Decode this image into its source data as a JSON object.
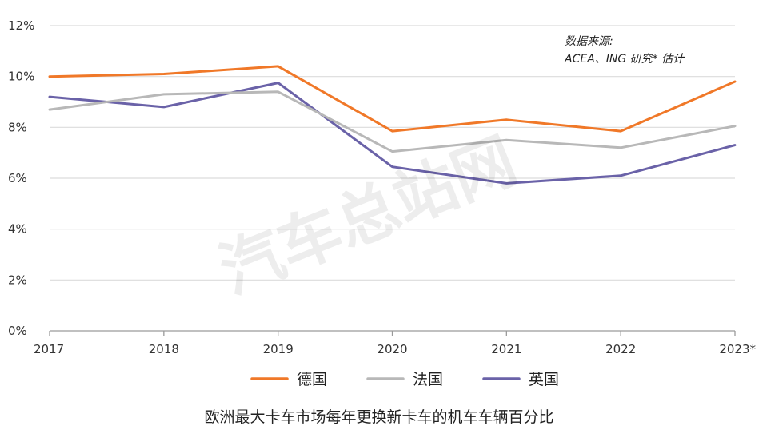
{
  "chart_data": {
    "type": "line",
    "x": [
      "2017",
      "2018",
      "2019",
      "2020",
      "2021",
      "2022",
      "2023*"
    ],
    "series": [
      {
        "name": "德国",
        "color": "#f07828",
        "values": [
          10.0,
          10.1,
          10.4,
          7.85,
          8.3,
          7.85,
          9.8
        ]
      },
      {
        "name": "法国",
        "color": "#b8b8b8",
        "values": [
          8.7,
          9.3,
          9.4,
          7.05,
          7.5,
          7.2,
          8.05
        ]
      },
      {
        "name": "英国",
        "color": "#6a62a8",
        "values": [
          9.2,
          8.8,
          9.75,
          6.45,
          5.8,
          6.1,
          7.3
        ]
      }
    ],
    "ylim": [
      0,
      12
    ],
    "y_ticks": [
      0,
      2,
      4,
      6,
      8,
      10,
      12
    ],
    "y_tick_labels": [
      "0%",
      "2%",
      "4%",
      "6%",
      "8%",
      "10%",
      "12%"
    ],
    "grid": true,
    "legend_position": "bottom",
    "source_note": [
      "数据来源:",
      "ACEA、ING 研究* 估计"
    ],
    "caption": "欧洲最大卡车市场每年更换新卡车的机车车辆百分比",
    "watermark": "汽车总站网"
  }
}
